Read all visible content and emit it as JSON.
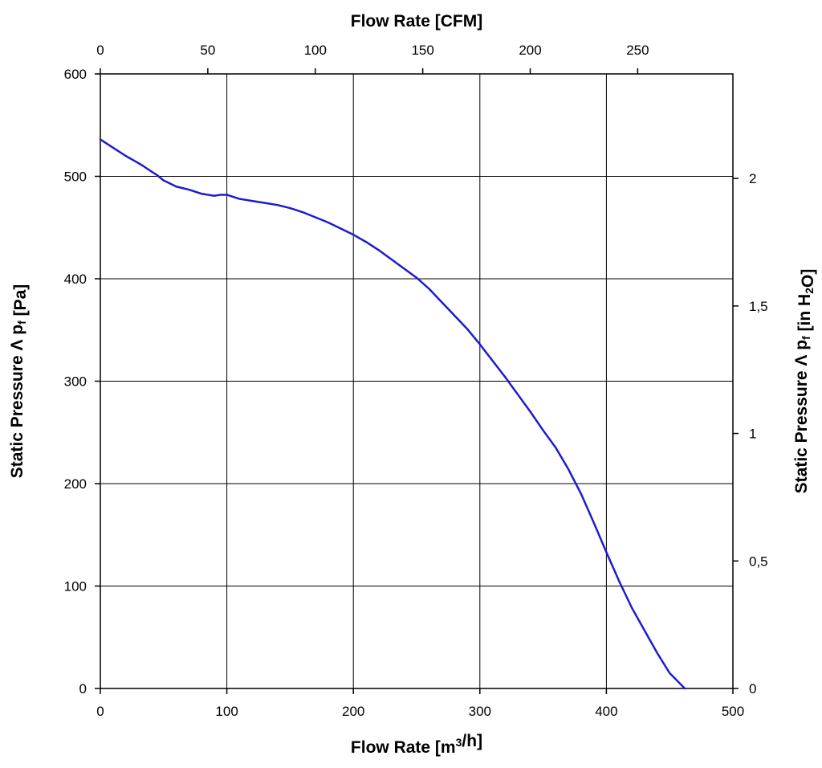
{
  "chart_data": {
    "type": "line",
    "title": "",
    "xlabel": "Flow Rate [m³/h]",
    "x2label": "Flow Rate [CFM]",
    "ylabel": "Static Pressure Λ p_f [Pa]",
    "y2label": "Static Pressure Λ p_f [in H₂O]",
    "xlim": [
      0,
      500
    ],
    "ylim": [
      0,
      600
    ],
    "x2lim": [
      0,
      294.3
    ],
    "y2lim": [
      0,
      2.41
    ],
    "x_ticks": [
      0,
      100,
      200,
      300,
      400,
      500
    ],
    "y_ticks": [
      0,
      100,
      200,
      300,
      400,
      500,
      600
    ],
    "x2_ticks": [
      0,
      50,
      100,
      150,
      200,
      250
    ],
    "y2_ticks": [
      "0",
      "0,5",
      "1",
      "1,5",
      "2"
    ],
    "y2_tick_values": [
      0,
      0.5,
      1,
      1.5,
      2
    ],
    "grid": true,
    "line_color": "#1c1cd0",
    "series": [
      {
        "name": "",
        "x": [
          0,
          10,
          20,
          30,
          34,
          40,
          45,
          50,
          55,
          60,
          70,
          80,
          90,
          95,
          100,
          110,
          120,
          130,
          140,
          150,
          160,
          170,
          180,
          190,
          200,
          210,
          220,
          230,
          240,
          250,
          260,
          270,
          280,
          290,
          300,
          310,
          320,
          330,
          340,
          350,
          360,
          370,
          380,
          390,
          400,
          410,
          420,
          430,
          440,
          450,
          462
        ],
        "y": [
          536,
          528,
          520,
          513,
          510,
          505,
          501,
          496,
          493,
          490,
          487,
          483,
          481,
          482,
          482,
          478,
          476,
          474,
          472,
          469,
          465,
          460,
          455,
          449,
          443,
          436,
          428,
          419,
          410,
          401,
          390,
          377,
          364,
          351,
          336,
          320,
          304,
          287,
          270,
          252,
          235,
          214,
          190,
          162,
          133,
          105,
          79,
          57,
          35,
          15,
          0
        ]
      }
    ]
  }
}
